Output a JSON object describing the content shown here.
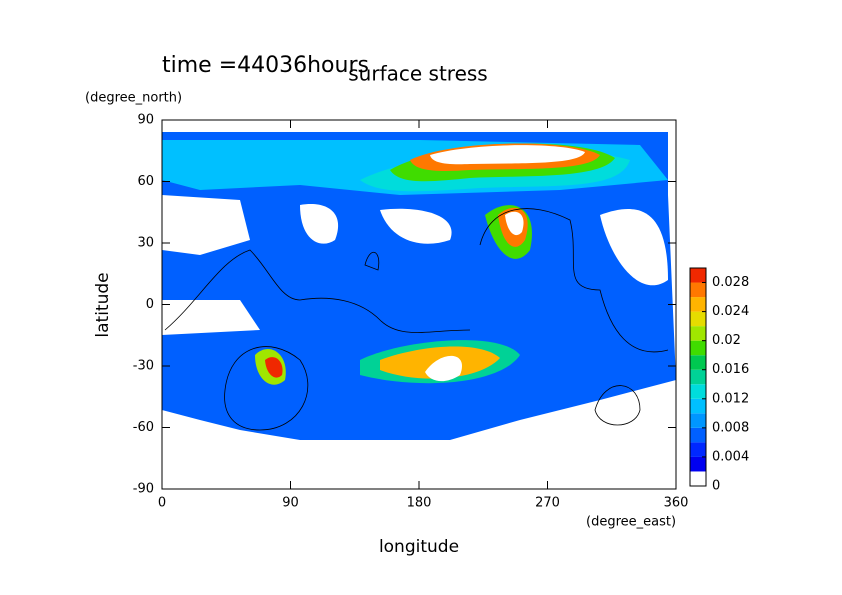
{
  "chart_data": {
    "type": "contour",
    "title": "surface stress",
    "annotation": "time =44036hours",
    "x_label": "longitude",
    "x_unit": "(degree_east)",
    "y_label": "latitude",
    "y_unit": "(degree_north)",
    "xlim": [
      0,
      360
    ],
    "xticks": [
      0,
      90,
      180,
      270,
      360
    ],
    "ylim": [
      -90,
      90
    ],
    "yticks": [
      -90,
      -60,
      -30,
      0,
      30,
      60,
      90
    ],
    "levels": [
      0,
      0.002,
      0.004,
      0.006,
      0.008,
      0.01,
      0.012,
      0.014,
      0.016,
      0.018,
      0.02,
      0.022,
      0.024,
      0.026,
      0.028,
      0.03
    ],
    "colors": [
      "#ffffff",
      "#0000f0",
      "#0028ff",
      "#0060ff",
      "#0096ff",
      "#00c0ff",
      "#00dcdc",
      "#00d296",
      "#00c850",
      "#40dc00",
      "#a0e600",
      "#e6dc00",
      "#ffb400",
      "#ff7800",
      "#f02800"
    ],
    "colorbar_ticks": [
      0,
      0.004,
      0.008,
      0.012,
      0.016,
      0.02,
      0.024,
      0.028
    ]
  }
}
